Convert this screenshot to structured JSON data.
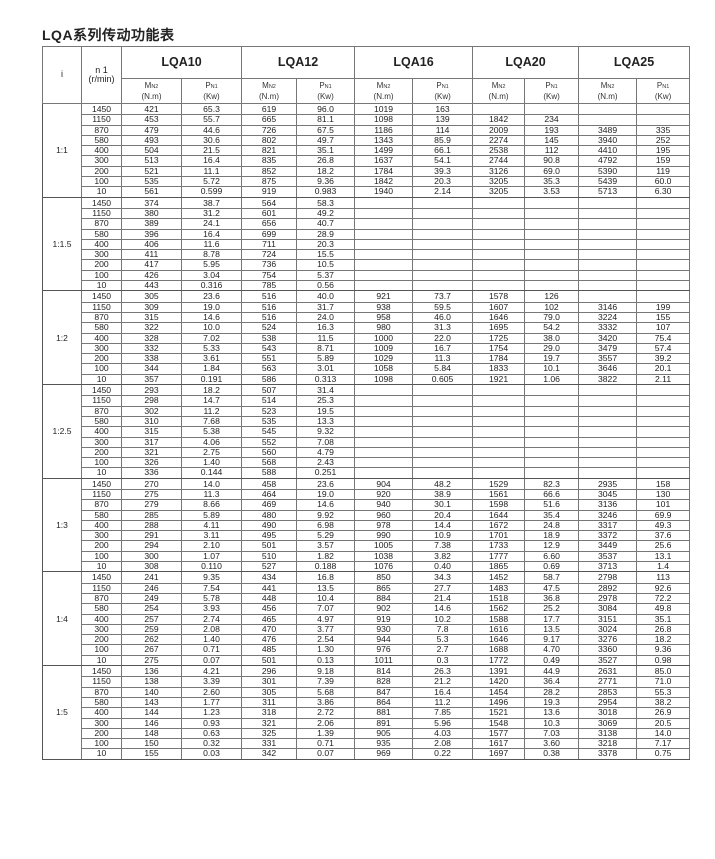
{
  "title": "LQA系列传动功能表",
  "header": {
    "ratio_label": "i",
    "speed_label": "n 1",
    "speed_unit": "(r/min)",
    "models": [
      "LQA10",
      "LQA12",
      "LQA16",
      "LQA20",
      "LQA25"
    ],
    "torque_symbol": "M",
    "torque_sub": "N2",
    "torque_unit": "(N.m)",
    "power_symbol": "P",
    "power_sub": "N1",
    "power_unit": "(Kw)"
  },
  "groups": [
    {
      "ratio": "1:1",
      "rows": [
        [
          "1450",
          "421",
          "65.3",
          "619",
          "96.0",
          "1019",
          "163",
          "",
          "",
          "",
          ""
        ],
        [
          "1150",
          "453",
          "55.7",
          "665",
          "81.1",
          "1098",
          "139",
          "1842",
          "234",
          "",
          ""
        ],
        [
          "870",
          "479",
          "44.6",
          "726",
          "67.5",
          "1186",
          "114",
          "2009",
          "193",
          "3489",
          "335"
        ],
        [
          "580",
          "493",
          "30.6",
          "802",
          "49.7",
          "1343",
          "85.9",
          "2274",
          "145",
          "3940",
          "252"
        ],
        [
          "400",
          "504",
          "21.5",
          "821",
          "35.1",
          "1499",
          "66.1",
          "2538",
          "112",
          "4410",
          "195"
        ],
        [
          "300",
          "513",
          "16.4",
          "835",
          "26.8",
          "1637",
          "54.1",
          "2744",
          "90.8",
          "4792",
          "159"
        ],
        [
          "200",
          "521",
          "11.1",
          "852",
          "18.2",
          "1784",
          "39.3",
          "3126",
          "69.0",
          "5390",
          "119"
        ],
        [
          "100",
          "535",
          "5.72",
          "875",
          "9.36",
          "1842",
          "20.3",
          "3205",
          "35.3",
          "5439",
          "60.0"
        ],
        [
          "10",
          "561",
          "0.599",
          "919",
          "0.983",
          "1940",
          "2.14",
          "3205",
          "3.53",
          "5713",
          "6.30"
        ]
      ]
    },
    {
      "ratio": "1:1.5",
      "rows": [
        [
          "1450",
          "374",
          "38.7",
          "564",
          "58.3",
          "",
          "",
          "",
          "",
          "",
          ""
        ],
        [
          "1150",
          "380",
          "31.2",
          "601",
          "49.2",
          "",
          "",
          "",
          "",
          "",
          ""
        ],
        [
          "870",
          "389",
          "24.1",
          "656",
          "40.7",
          "",
          "",
          "",
          "",
          "",
          ""
        ],
        [
          "580",
          "396",
          "16.4",
          "699",
          "28.9",
          "",
          "",
          "",
          "",
          "",
          ""
        ],
        [
          "400",
          "406",
          "11.6",
          "711",
          "20.3",
          "",
          "",
          "",
          "",
          "",
          ""
        ],
        [
          "300",
          "411",
          "8.78",
          "724",
          "15.5",
          "",
          "",
          "",
          "",
          "",
          ""
        ],
        [
          "200",
          "417",
          "5.95",
          "736",
          "10.5",
          "",
          "",
          "",
          "",
          "",
          ""
        ],
        [
          "100",
          "426",
          "3.04",
          "754",
          "5.37",
          "",
          "",
          "",
          "",
          "",
          ""
        ],
        [
          "10",
          "443",
          "0.316",
          "785",
          "0.56",
          "",
          "",
          "",
          "",
          "",
          ""
        ]
      ]
    },
    {
      "ratio": "1:2",
      "rows": [
        [
          "1450",
          "305",
          "23.6",
          "516",
          "40.0",
          "921",
          "73.7",
          "1578",
          "126",
          "",
          ""
        ],
        [
          "1150",
          "309",
          "19.0",
          "516",
          "31.7",
          "938",
          "59.5",
          "1607",
          "102",
          "3146",
          "199"
        ],
        [
          "870",
          "315",
          "14.6",
          "516",
          "24.0",
          "958",
          "46.0",
          "1646",
          "79.0",
          "3224",
          "155"
        ],
        [
          "580",
          "322",
          "10.0",
          "524",
          "16.3",
          "980",
          "31.3",
          "1695",
          "54.2",
          "3332",
          "107"
        ],
        [
          "400",
          "328",
          "7.02",
          "538",
          "11.5",
          "1000",
          "22.0",
          "1725",
          "38.0",
          "3420",
          "75.4"
        ],
        [
          "300",
          "332",
          "5.33",
          "543",
          "8.71",
          "1009",
          "16.7",
          "1754",
          "29.0",
          "3479",
          "57.4"
        ],
        [
          "200",
          "338",
          "3.61",
          "551",
          "5.89",
          "1029",
          "11.3",
          "1784",
          "19.7",
          "3557",
          "39.2"
        ],
        [
          "100",
          "344",
          "1.84",
          "563",
          "3.01",
          "1058",
          "5.84",
          "1833",
          "10.1",
          "3646",
          "20.1"
        ],
        [
          "10",
          "357",
          "0.191",
          "586",
          "0.313",
          "1098",
          "0.605",
          "1921",
          "1.06",
          "3822",
          "2.11"
        ]
      ]
    },
    {
      "ratio": "1:2.5",
      "rows": [
        [
          "1450",
          "293",
          "18.2",
          "507",
          "31.4",
          "",
          "",
          "",
          "",
          "",
          ""
        ],
        [
          "1150",
          "298",
          "14.7",
          "514",
          "25.3",
          "",
          "",
          "",
          "",
          "",
          ""
        ],
        [
          "870",
          "302",
          "11.2",
          "523",
          "19.5",
          "",
          "",
          "",
          "",
          "",
          ""
        ],
        [
          "580",
          "310",
          "7.68",
          "535",
          "13.3",
          "",
          "",
          "",
          "",
          "",
          ""
        ],
        [
          "400",
          "315",
          "5.38",
          "545",
          "9.32",
          "",
          "",
          "",
          "",
          "",
          ""
        ],
        [
          "300",
          "317",
          "4.06",
          "552",
          "7.08",
          "",
          "",
          "",
          "",
          "",
          ""
        ],
        [
          "200",
          "321",
          "2.75",
          "560",
          "4.79",
          "",
          "",
          "",
          "",
          "",
          ""
        ],
        [
          "100",
          "326",
          "1.40",
          "568",
          "2.43",
          "",
          "",
          "",
          "",
          "",
          ""
        ],
        [
          "10",
          "336",
          "0.144",
          "588",
          "0.251",
          "",
          "",
          "",
          "",
          "",
          ""
        ]
      ]
    },
    {
      "ratio": "1:3",
      "rows": [
        [
          "1450",
          "270",
          "14.0",
          "458",
          "23.6",
          "904",
          "48.2",
          "1529",
          "82.3",
          "2935",
          "158"
        ],
        [
          "1150",
          "275",
          "11.3",
          "464",
          "19.0",
          "920",
          "38.9",
          "1561",
          "66.6",
          "3045",
          "130"
        ],
        [
          "870",
          "279",
          "8.66",
          "469",
          "14.6",
          "940",
          "30.1",
          "1598",
          "51.6",
          "3136",
          "101"
        ],
        [
          "580",
          "285",
          "5.89",
          "480",
          "9.92",
          "960",
          "20.4",
          "1644",
          "35.4",
          "3246",
          "69.9"
        ],
        [
          "400",
          "288",
          "4.11",
          "490",
          "6.98",
          "978",
          "14.4",
          "1672",
          "24.8",
          "3317",
          "49.3"
        ],
        [
          "300",
          "291",
          "3.11",
          "495",
          "5.29",
          "990",
          "10.9",
          "1701",
          "18.9",
          "3372",
          "37.6"
        ],
        [
          "200",
          "294",
          "2.10",
          "501",
          "3.57",
          "1005",
          "7.38",
          "1733",
          "12.9",
          "3449",
          "25.6"
        ],
        [
          "100",
          "300",
          "1.07",
          "510",
          "1.82",
          "1038",
          "3.82",
          "1777",
          "6.60",
          "3537",
          "13.1"
        ],
        [
          "10",
          "308",
          "0.110",
          "527",
          "0.188",
          "1076",
          "0.40",
          "1865",
          "0.69",
          "3713",
          "1.4"
        ]
      ]
    },
    {
      "ratio": "1:4",
      "rows": [
        [
          "1450",
          "241",
          "9.35",
          "434",
          "16.8",
          "850",
          "34.3",
          "1452",
          "58.7",
          "2798",
          "113"
        ],
        [
          "1150",
          "246",
          "7.54",
          "441",
          "13.5",
          "865",
          "27.7",
          "1483",
          "47.5",
          "2892",
          "92.6"
        ],
        [
          "870",
          "249",
          "5.78",
          "448",
          "10.4",
          "884",
          "21.4",
          "1518",
          "36.8",
          "2978",
          "72.2"
        ],
        [
          "580",
          "254",
          "3.93",
          "456",
          "7.07",
          "902",
          "14.6",
          "1562",
          "25.2",
          "3084",
          "49.8"
        ],
        [
          "400",
          "257",
          "2.74",
          "465",
          "4.97",
          "919",
          "10.2",
          "1588",
          "17.7",
          "3151",
          "35.1"
        ],
        [
          "300",
          "259",
          "2.08",
          "470",
          "3.77",
          "930",
          "7.8",
          "1616",
          "13.5",
          "3024",
          "26.8"
        ],
        [
          "200",
          "262",
          "1.40",
          "476",
          "2.54",
          "944",
          "5.3",
          "1646",
          "9.17",
          "3276",
          "18.2"
        ],
        [
          "100",
          "267",
          "0.71",
          "485",
          "1.30",
          "976",
          "2.7",
          "1688",
          "4.70",
          "3360",
          "9.36"
        ],
        [
          "10",
          "275",
          "0.07",
          "501",
          "0.13",
          "1011",
          "0.3",
          "1772",
          "0.49",
          "3527",
          "0.98"
        ]
      ]
    },
    {
      "ratio": "1:5",
      "rows": [
        [
          "1450",
          "136",
          "4.21",
          "296",
          "9.18",
          "814",
          "26.3",
          "1391",
          "44.9",
          "2631",
          "85.0"
        ],
        [
          "1150",
          "138",
          "3.39",
          "301",
          "7.39",
          "828",
          "21.2",
          "1420",
          "36.4",
          "2771",
          "71.0"
        ],
        [
          "870",
          "140",
          "2.60",
          "305",
          "5.68",
          "847",
          "16.4",
          "1454",
          "28.2",
          "2853",
          "55.3"
        ],
        [
          "580",
          "143",
          "1.77",
          "311",
          "3.86",
          "864",
          "11.2",
          "1496",
          "19.3",
          "2954",
          "38.2"
        ],
        [
          "400",
          "144",
          "1.23",
          "318",
          "2.72",
          "881",
          "7.85",
          "1521",
          "13.6",
          "3018",
          "26.9"
        ],
        [
          "300",
          "146",
          "0.93",
          "321",
          "2.06",
          "891",
          "5.96",
          "1548",
          "10.3",
          "3069",
          "20.5"
        ],
        [
          "200",
          "148",
          "0.63",
          "325",
          "1.39",
          "905",
          "4.03",
          "1577",
          "7.03",
          "3138",
          "14.0"
        ],
        [
          "100",
          "150",
          "0.32",
          "331",
          "0.71",
          "935",
          "2.08",
          "1617",
          "3.60",
          "3218",
          "7.17"
        ],
        [
          "10",
          "155",
          "0.03",
          "342",
          "0.07",
          "969",
          "0.22",
          "1697",
          "0.38",
          "3378",
          "0.75"
        ]
      ]
    }
  ]
}
